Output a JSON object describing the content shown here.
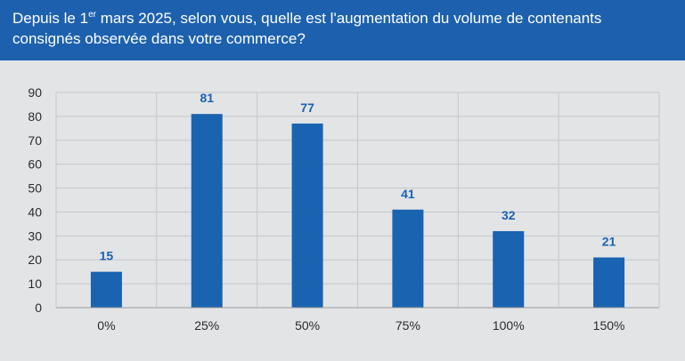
{
  "header": {
    "title_part1": "Depuis le 1",
    "title_sup": "er",
    "title_part2": " mars 2025, selon vous, quelle est l'augmentation du volume de contenants consignés observée dans votre commerce?"
  },
  "colors": {
    "header_bg": "#1d61ae",
    "bar": "#1a63b0",
    "data_label": "#1a63b0",
    "background": "#e3e4e6",
    "grid": "#c5c7ca"
  },
  "chart_data": {
    "type": "bar",
    "categories": [
      "0%",
      "25%",
      "50%",
      "75%",
      "100%",
      "150%"
    ],
    "values": [
      15,
      81,
      77,
      41,
      32,
      21
    ],
    "ylim": [
      0,
      90
    ],
    "yticks": [
      0,
      10,
      20,
      30,
      40,
      50,
      60,
      70,
      80,
      90
    ],
    "grid": true,
    "data_labels": true,
    "title": "",
    "xlabel": "",
    "ylabel": ""
  }
}
